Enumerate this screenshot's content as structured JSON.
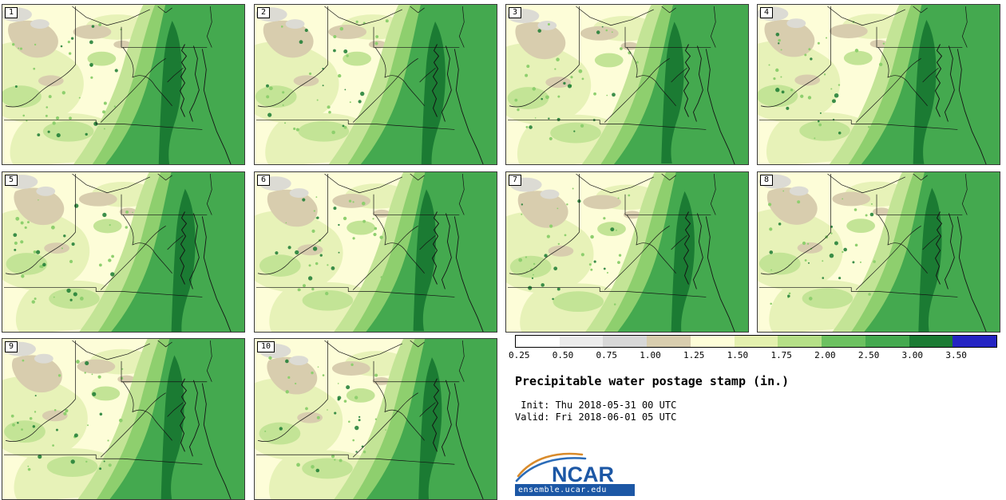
{
  "panels": [
    {
      "label": "1"
    },
    {
      "label": "2"
    },
    {
      "label": "3"
    },
    {
      "label": "4"
    },
    {
      "label": "5"
    },
    {
      "label": "6"
    },
    {
      "label": "7"
    },
    {
      "label": "8"
    },
    {
      "label": "9"
    },
    {
      "label": "10"
    }
  ],
  "colorbar": {
    "ticks": [
      "0.25",
      "0.50",
      "0.75",
      "1.00",
      "1.25",
      "1.50",
      "1.75",
      "2.00",
      "2.50",
      "3.00",
      "3.50"
    ],
    "colors": [
      "#ffffff",
      "#ebebeb",
      "#d7d7d7",
      "#d8cdae",
      "#fdfdd8",
      "#e3f0ae",
      "#b5df87",
      "#6cc160",
      "#44a94f",
      "#1b7b33",
      "#2424c3"
    ]
  },
  "info": {
    "title": "Precipitable water postage stamp (in.)",
    "init": " Init: Thu 2018-05-31 00 UTC",
    "valid": "Valid: Fri 2018-06-01 05 UTC"
  },
  "logo": {
    "name": "NCAR",
    "url": "ensemble.ucar.edu",
    "blue": "#1c57a5",
    "orange": "#d98b2b"
  },
  "map_colors": {
    "cream": "#fdfdd8",
    "paleGreen": "#e7f2b8",
    "lightGreen": "#c3e496",
    "medGreen": "#8ecf6e",
    "green": "#44a94f",
    "darkGreen": "#1b7b33",
    "tan": "#d8cdae",
    "gray": "#dcdbd4",
    "border": "#141414"
  },
  "chart_data": {
    "type": "heatmap",
    "title": "Precipitable water postage stamp (in.)",
    "subtitle_lines": [
      "Init: Thu 2018-05-31 00 UTC",
      "Valid: Fri 2018-06-01 05 UTC"
    ],
    "ensemble_members": [
      "1",
      "2",
      "3",
      "4",
      "5",
      "6",
      "7",
      "8",
      "9",
      "10"
    ],
    "variable": "Precipitable water",
    "units": "in.",
    "colorbar_levels": [
      0.25,
      0.5,
      0.75,
      1.0,
      1.25,
      1.5,
      1.75,
      2.0,
      2.5,
      3.0,
      3.5
    ],
    "colorbar_colors": [
      "#ffffff",
      "#ebebeb",
      "#d7d7d7",
      "#d8cdae",
      "#fdfdd8",
      "#e3f0ae",
      "#b5df87",
      "#6cc160",
      "#44a94f",
      "#1b7b33",
      "#2424c3"
    ],
    "legend_position": "bottom-right",
    "source_label": "ensemble.ucar.edu"
  }
}
